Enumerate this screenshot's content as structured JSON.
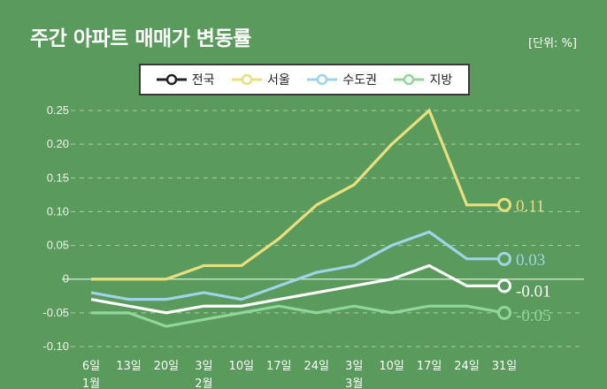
{
  "header": {
    "title": "주간 아파트 매매가 변동률",
    "unit": "[단위: %]"
  },
  "chart_data": {
    "type": "line",
    "title": "주간 아파트 매매가 변동률",
    "unit": "[단위: %]",
    "x": [
      "6일",
      "13일",
      "20일",
      "3일",
      "10일",
      "17일",
      "24일",
      "3일",
      "10일",
      "17일",
      "24일",
      "31일"
    ],
    "month_labels": [
      {
        "index": 0,
        "label": "1월"
      },
      {
        "index": 3,
        "label": "2월"
      },
      {
        "index": 7,
        "label": "3월"
      }
    ],
    "ylim": [
      -0.1,
      0.25
    ],
    "yticks": [
      "0.25",
      "0.20",
      "0.15",
      "0.10",
      "0.05",
      "0",
      "-0.05",
      "-0.10"
    ],
    "ytick_values": [
      0.25,
      0.2,
      0.15,
      0.1,
      0.05,
      0,
      -0.05,
      -0.1
    ],
    "series": [
      {
        "name": "전국",
        "color": "#ffffff",
        "values": [
          -0.03,
          -0.04,
          -0.05,
          -0.04,
          -0.04,
          -0.03,
          -0.02,
          -0.01,
          0.0,
          0.02,
          -0.01,
          -0.01
        ],
        "end_label": "-0.01"
      },
      {
        "name": "서울",
        "color": "#e8df7e",
        "values": [
          0.0,
          0.0,
          0.0,
          0.02,
          0.02,
          0.06,
          0.11,
          0.14,
          0.2,
          0.25,
          0.11,
          0.11
        ],
        "end_label": "0.11"
      },
      {
        "name": "수도권",
        "color": "#9fd3e6",
        "values": [
          -0.02,
          -0.03,
          -0.03,
          -0.02,
          -0.03,
          -0.01,
          0.01,
          0.02,
          0.05,
          0.07,
          0.03,
          0.03
        ],
        "end_label": "0.03"
      },
      {
        "name": "지방",
        "color": "#8fd69a",
        "values": [
          -0.05,
          -0.05,
          -0.07,
          -0.06,
          -0.05,
          -0.04,
          -0.05,
          -0.04,
          -0.05,
          -0.04,
          -0.04,
          -0.05
        ],
        "end_label": "-0.05"
      }
    ],
    "grid": true,
    "legend": "top-center"
  }
}
